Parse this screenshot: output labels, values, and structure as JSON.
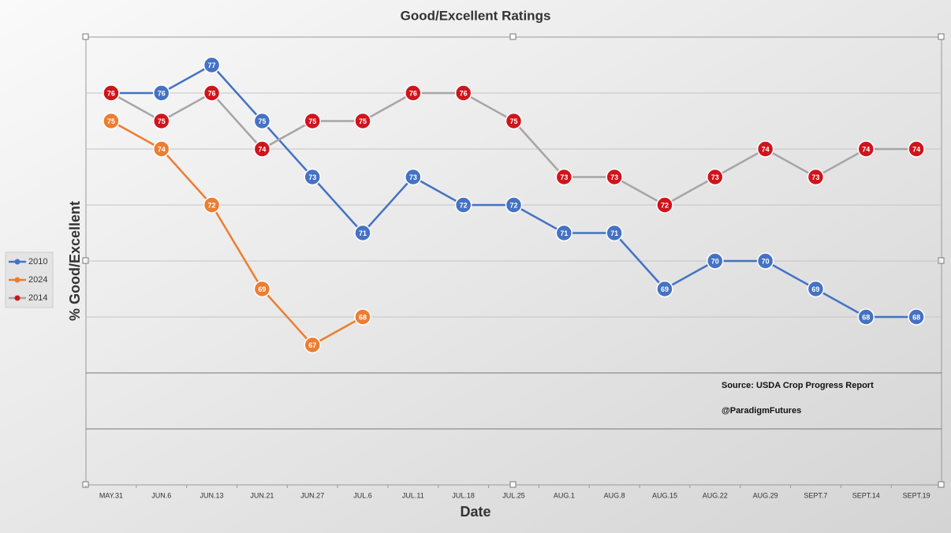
{
  "chart_data": {
    "type": "line",
    "title": "Good/Excellent Ratings",
    "x_label": "Date",
    "y_label": "% Good/Excellent",
    "categories": [
      "MAY.31",
      "JUN.6",
      "JUN.13",
      "JUN.21",
      "JUN.27",
      "JUL.6",
      "JUL.11",
      "JUL.18",
      "JUL.25",
      "AUG.1",
      "AUG.8",
      "AUG.15",
      "AUG.22",
      "AUG.29",
      "SEPT.7",
      "SEPT.14",
      "SEPT.19"
    ],
    "series": [
      {
        "name": "2010",
        "color": "#4472c4",
        "marker_color": "#4472c4",
        "values": [
          76,
          76,
          77,
          75,
          73,
          71,
          73,
          72,
          72,
          71,
          71,
          69,
          70,
          70,
          69,
          68,
          68
        ]
      },
      {
        "name": "2024",
        "color": "#ed7d31",
        "marker_color": "#ed7d31",
        "values": [
          75,
          74,
          72,
          69,
          67,
          68,
          null,
          null,
          null,
          null,
          null,
          null,
          null,
          null,
          null,
          null,
          null
        ]
      },
      {
        "name": "2014",
        "color": "#a5a5a5",
        "marker_color": "#d0141b",
        "values": [
          76,
          75,
          76,
          74,
          75,
          75,
          76,
          76,
          75,
          73,
          73,
          72,
          73,
          74,
          73,
          74,
          74
        ]
      }
    ],
    "ylim": [
      62,
      78
    ],
    "yticks": [
      64,
      66,
      68,
      70,
      72,
      74,
      76
    ],
    "grid": true,
    "legend": "left",
    "annotations": [
      "Source: USDA Crop Progress Report",
      "@ParadigmFutures"
    ]
  }
}
